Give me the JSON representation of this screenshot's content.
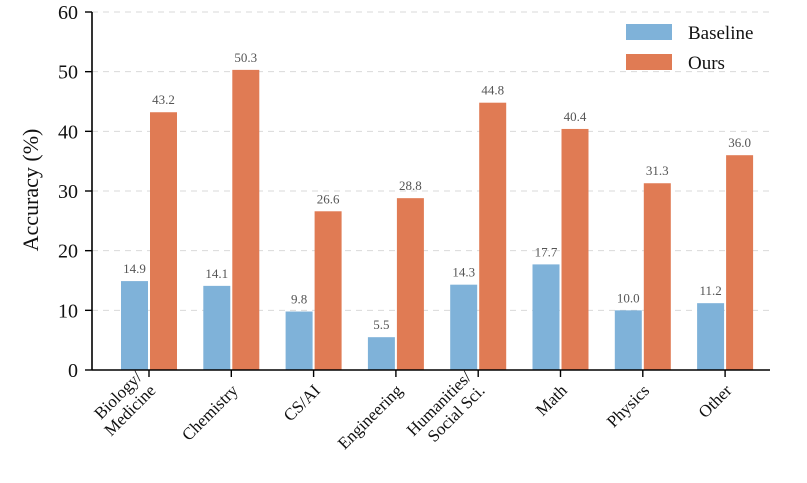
{
  "chart_data": {
    "type": "bar",
    "categories": [
      [
        "Biology/",
        "Medicine"
      ],
      [
        "Chemistry"
      ],
      [
        "CS/AI"
      ],
      [
        "Engineering"
      ],
      [
        "Humanities/",
        "Social Sci."
      ],
      [
        "Math"
      ],
      [
        "Physics"
      ],
      [
        "Other"
      ]
    ],
    "series": [
      {
        "name": "Baseline",
        "color": "#7fb2d9",
        "values": [
          14.9,
          14.1,
          9.8,
          5.5,
          14.3,
          17.7,
          10.0,
          11.2
        ],
        "labels": [
          "14.9",
          "14.1",
          "9.8",
          "5.5",
          "14.3",
          "17.7",
          "10.0",
          "11.2"
        ]
      },
      {
        "name": "Ours",
        "color": "#e07b54",
        "values": [
          43.2,
          50.3,
          26.6,
          28.8,
          44.8,
          40.4,
          31.3,
          36.0
        ],
        "labels": [
          "43.2",
          "50.3",
          "26.6",
          "28.8",
          "44.8",
          "40.4",
          "31.3",
          "36.0"
        ]
      }
    ],
    "ylabel": "Accuracy (%)",
    "xlabel": "",
    "ylim": [
      0,
      60
    ],
    "yticks": [
      "0",
      "10",
      "20",
      "30",
      "40",
      "50",
      "60"
    ],
    "grid": "horizontal dashed",
    "legend": "top-right"
  }
}
